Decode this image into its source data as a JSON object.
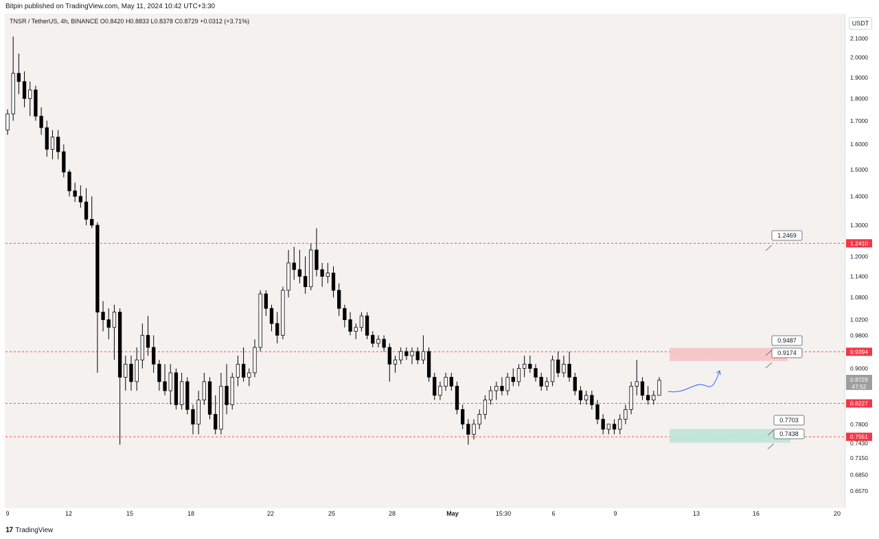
{
  "header": {
    "published": "Bitpin published on TradingView.com, May 11, 2024 10:42 UTC+3:30"
  },
  "legend": {
    "symbol": "TNSR / TetherUS, 4h, BINANCE",
    "open": "O0.8420",
    "high": "H0.8833",
    "low": "L0.8378",
    "close": "C0.8729",
    "change": "+0.0312 (+3.71%)"
  },
  "currency": "USDT",
  "footer": {
    "brand": "TradingView"
  },
  "colors": {
    "up": "#ffffff",
    "down": "#000000",
    "line": "#ff4a4a",
    "resistance_zone": "#f7c3c5",
    "support_zone": "#bfe3d7",
    "current_price_tag": "#9e9e9e",
    "level_tag": "#f23645",
    "projection": "#2962ff"
  },
  "chart_data": {
    "type": "candlestick",
    "y_scale": "log",
    "ylim": [
      0.64,
      2.16
    ],
    "price_ticks": [
      "2.1000",
      "2.0000",
      "1.9000",
      "1.8000",
      "1.7000",
      "1.6000",
      "1.5000",
      "1.4000",
      "1.3000",
      "1.2000",
      "1.1400",
      "1.0800",
      "1.0200",
      "0.9800",
      "0.9000",
      "0.7800",
      "0.7430",
      "0.7150",
      "0.6850",
      "0.6570"
    ],
    "time_ticks": [
      "9",
      "12",
      "15",
      "18",
      "22",
      "25",
      "28",
      "May",
      "15:30",
      "6",
      "9",
      "13",
      "16",
      "20"
    ],
    "horizontal_lines": [
      1.241,
      0.9394,
      0.8227,
      0.7551
    ],
    "level_tags": [
      "1.2410",
      "0.9394",
      "0.8227",
      "0.7551"
    ],
    "current_price": {
      "value": "0.8729",
      "countdown": "47:52"
    },
    "callouts": [
      "1.2469",
      "0.9487",
      "0.9174",
      "0.7703",
      "0.7438"
    ],
    "resistance_zone": [
      0.9174,
      0.9487
    ],
    "support_zone": [
      0.7438,
      0.7703
    ],
    "candles": [
      [
        1.66,
        1.75,
        1.64,
        1.73
      ],
      [
        1.73,
        2.11,
        1.7,
        1.92
      ],
      [
        1.92,
        2.02,
        1.82,
        1.88
      ],
      [
        1.88,
        1.93,
        1.76,
        1.8
      ],
      [
        1.8,
        1.88,
        1.72,
        1.84
      ],
      [
        1.84,
        1.86,
        1.7,
        1.72
      ],
      [
        1.72,
        1.76,
        1.64,
        1.67
      ],
      [
        1.67,
        1.7,
        1.55,
        1.58
      ],
      [
        1.58,
        1.66,
        1.54,
        1.63
      ],
      [
        1.63,
        1.66,
        1.54,
        1.57
      ],
      [
        1.57,
        1.6,
        1.47,
        1.49
      ],
      [
        1.49,
        1.5,
        1.4,
        1.42
      ],
      [
        1.42,
        1.45,
        1.38,
        1.4
      ],
      [
        1.4,
        1.44,
        1.36,
        1.38
      ],
      [
        1.38,
        1.43,
        1.3,
        1.32
      ],
      [
        1.32,
        1.4,
        1.29,
        1.3
      ],
      [
        1.3,
        1.31,
        0.89,
        1.04
      ],
      [
        1.04,
        1.07,
        0.99,
        1.02
      ],
      [
        1.02,
        1.05,
        0.97,
        1.0
      ],
      [
        1.0,
        1.06,
        0.92,
        1.04
      ],
      [
        1.04,
        1.05,
        0.74,
        0.88
      ],
      [
        0.88,
        0.93,
        0.85,
        0.91
      ],
      [
        0.91,
        0.93,
        0.85,
        0.87
      ],
      [
        0.87,
        0.95,
        0.85,
        0.92
      ],
      [
        0.92,
        1.01,
        0.9,
        0.98
      ],
      [
        0.98,
        1.03,
        0.93,
        0.95
      ],
      [
        0.95,
        0.98,
        0.89,
        0.91
      ],
      [
        0.91,
        0.92,
        0.85,
        0.87
      ],
      [
        0.87,
        0.91,
        0.84,
        0.85
      ],
      [
        0.85,
        0.91,
        0.82,
        0.89
      ],
      [
        0.89,
        0.9,
        0.81,
        0.82
      ],
      [
        0.82,
        0.89,
        0.81,
        0.87
      ],
      [
        0.87,
        0.88,
        0.8,
        0.81
      ],
      [
        0.81,
        0.82,
        0.76,
        0.78
      ],
      [
        0.78,
        0.85,
        0.76,
        0.83
      ],
      [
        0.83,
        0.89,
        0.82,
        0.87
      ],
      [
        0.87,
        0.88,
        0.79,
        0.8
      ],
      [
        0.8,
        0.84,
        0.76,
        0.77
      ],
      [
        0.77,
        0.89,
        0.76,
        0.86
      ],
      [
        0.86,
        0.91,
        0.8,
        0.82
      ],
      [
        0.82,
        0.89,
        0.81,
        0.88
      ],
      [
        0.88,
        0.93,
        0.86,
        0.91
      ],
      [
        0.91,
        0.95,
        0.87,
        0.88
      ],
      [
        0.88,
        0.9,
        0.86,
        0.89
      ],
      [
        0.89,
        0.97,
        0.88,
        0.95
      ],
      [
        0.95,
        1.1,
        0.94,
        1.09
      ],
      [
        1.09,
        1.1,
        1.03,
        1.05
      ],
      [
        1.05,
        1.06,
        0.99,
        1.01
      ],
      [
        1.01,
        1.04,
        0.96,
        0.98
      ],
      [
        0.98,
        1.11,
        0.97,
        1.1
      ],
      [
        1.1,
        1.22,
        1.08,
        1.18
      ],
      [
        1.18,
        1.23,
        1.13,
        1.16
      ],
      [
        1.16,
        1.22,
        1.12,
        1.14
      ],
      [
        1.14,
        1.2,
        1.09,
        1.11
      ],
      [
        1.11,
        1.24,
        1.1,
        1.22
      ],
      [
        1.22,
        1.29,
        1.14,
        1.16
      ],
      [
        1.16,
        1.18,
        1.11,
        1.14
      ],
      [
        1.14,
        1.18,
        1.12,
        1.15
      ],
      [
        1.15,
        1.17,
        1.08,
        1.1
      ],
      [
        1.1,
        1.12,
        1.03,
        1.05
      ],
      [
        1.05,
        1.06,
        1.0,
        1.02
      ],
      [
        1.02,
        1.04,
        0.98,
        0.99
      ],
      [
        0.99,
        1.01,
        0.97,
        1.0
      ],
      [
        1.0,
        1.04,
        0.99,
        1.03
      ],
      [
        1.03,
        1.04,
        0.97,
        0.98
      ],
      [
        0.98,
        0.99,
        0.95,
        0.96
      ],
      [
        0.96,
        0.98,
        0.95,
        0.97
      ],
      [
        0.97,
        0.98,
        0.94,
        0.95
      ],
      [
        0.95,
        0.96,
        0.87,
        0.91
      ],
      [
        0.91,
        0.93,
        0.89,
        0.92
      ],
      [
        0.92,
        0.95,
        0.91,
        0.94
      ],
      [
        0.94,
        0.95,
        0.92,
        0.93
      ],
      [
        0.93,
        0.95,
        0.91,
        0.94
      ],
      [
        0.94,
        0.95,
        0.91,
        0.92
      ],
      [
        0.92,
        0.98,
        0.91,
        0.94
      ],
      [
        0.94,
        0.95,
        0.87,
        0.88
      ],
      [
        0.88,
        0.89,
        0.83,
        0.84
      ],
      [
        0.84,
        0.87,
        0.83,
        0.86
      ],
      [
        0.86,
        0.89,
        0.85,
        0.88
      ],
      [
        0.88,
        0.89,
        0.85,
        0.86
      ],
      [
        0.86,
        0.87,
        0.8,
        0.81
      ],
      [
        0.81,
        0.82,
        0.77,
        0.78
      ],
      [
        0.78,
        0.79,
        0.74,
        0.76
      ],
      [
        0.76,
        0.79,
        0.75,
        0.78
      ],
      [
        0.78,
        0.81,
        0.77,
        0.8
      ],
      [
        0.8,
        0.84,
        0.79,
        0.83
      ],
      [
        0.83,
        0.86,
        0.82,
        0.85
      ],
      [
        0.85,
        0.87,
        0.83,
        0.86
      ],
      [
        0.86,
        0.88,
        0.84,
        0.85
      ],
      [
        0.85,
        0.89,
        0.84,
        0.88
      ],
      [
        0.88,
        0.9,
        0.86,
        0.87
      ],
      [
        0.87,
        0.91,
        0.86,
        0.9
      ],
      [
        0.9,
        0.93,
        0.88,
        0.91
      ],
      [
        0.91,
        0.93,
        0.89,
        0.9
      ],
      [
        0.9,
        0.91,
        0.87,
        0.88
      ],
      [
        0.88,
        0.89,
        0.85,
        0.86
      ],
      [
        0.86,
        0.88,
        0.85,
        0.87
      ],
      [
        0.87,
        0.93,
        0.86,
        0.92
      ],
      [
        0.92,
        0.94,
        0.88,
        0.89
      ],
      [
        0.89,
        0.93,
        0.88,
        0.91
      ],
      [
        0.91,
        0.94,
        0.87,
        0.88
      ],
      [
        0.88,
        0.89,
        0.84,
        0.85
      ],
      [
        0.85,
        0.86,
        0.82,
        0.83
      ],
      [
        0.83,
        0.85,
        0.82,
        0.84
      ],
      [
        0.84,
        0.85,
        0.81,
        0.82
      ],
      [
        0.82,
        0.83,
        0.78,
        0.79
      ],
      [
        0.79,
        0.8,
        0.76,
        0.77
      ],
      [
        0.77,
        0.78,
        0.76,
        0.78
      ],
      [
        0.78,
        0.79,
        0.76,
        0.77
      ],
      [
        0.77,
        0.8,
        0.76,
        0.79
      ],
      [
        0.79,
        0.82,
        0.78,
        0.81
      ],
      [
        0.81,
        0.87,
        0.8,
        0.86
      ],
      [
        0.86,
        0.92,
        0.84,
        0.87
      ],
      [
        0.87,
        0.88,
        0.83,
        0.84
      ],
      [
        0.84,
        0.86,
        0.82,
        0.83
      ],
      [
        0.83,
        0.85,
        0.82,
        0.84
      ],
      [
        0.84,
        0.88,
        0.84,
        0.873
      ]
    ]
  }
}
